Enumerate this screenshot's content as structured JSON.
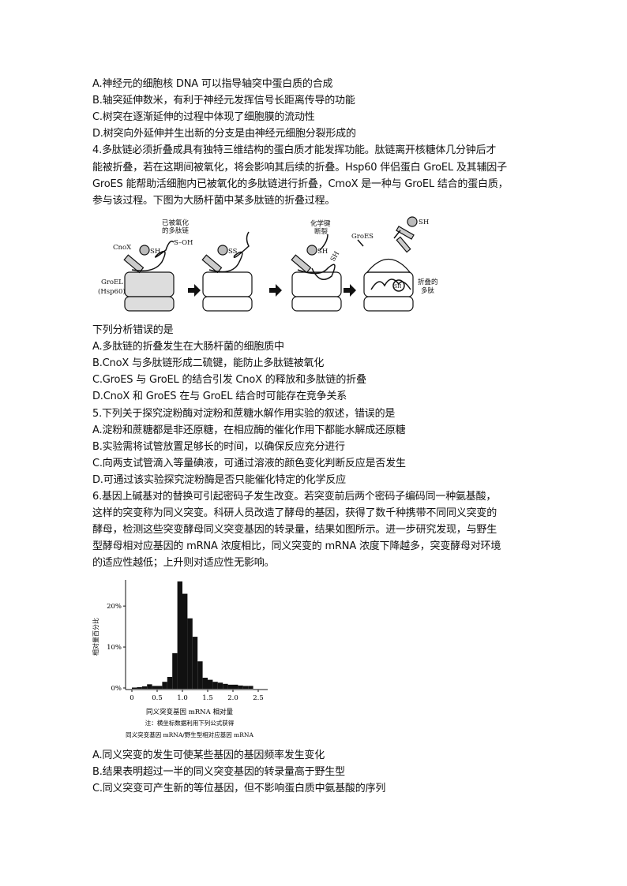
{
  "lines_top": [
    "A.神经元的细胞核 DNA 可以指导轴突中蛋白质的合成",
    "B.轴突延伸数米，有利于神经元发挥信号长距离传导的功能",
    "C.树突在逐渐延伸的过程中体现了细胞膜的流动性",
    "D.树突向外延伸并生出新的分支是由神经元细胞分裂形成的",
    "4.多肽链必须折叠成具有独特三维结构的蛋白质才能发挥功能。肽链离开核糖体几分钟后才",
    "能被折叠，若在这期间被氧化，将会影响其后续的折叠。Hsp60 伴侣蛋白 GroEL 及其辅因子",
    "GroES 能帮助活细胞内已被氧化的多肽链进行折叠，CmoX 是一种与 GroEL 结合的蛋白质，",
    "参与该过程。下图为大肠杆菌中某多肽链的折叠过程。"
  ],
  "diagram": {
    "oxidized_label_1": "已被氧化",
    "oxidized_label_2": "的多肽链",
    "cnox": "CnoX",
    "sh": "SH",
    "soh": "S–OH",
    "ss": "SS",
    "bond_label_1": "化学键",
    "bond_label_2": "断裂",
    "sh_rotated": "SH",
    "groes": "GroES",
    "groel_1": "GroEL",
    "groel_2": "(Hsp60)",
    "folded_1": "折叠的",
    "folded_2": "多肽",
    "sh_free": "SH",
    "sh_folded": "SH"
  },
  "lines_mid": [
    "下列分析错误的是",
    "A.多肽链的折叠发生在大肠杆菌的细胞质中",
    "B.CnoX 与多肽链形成二硫键，能防止多肽链被氧化",
    "C.GroES 与 GroEL 的结合引发 CnoX 的释放和多肽链的折叠",
    "D.CnoX 和 GroES 在与 GroEL 结合时可能存在竞争关系",
    "5.下列关于探究淀粉酶对淀粉和蔗糖水解作用实验的叙述，错误的是",
    "A.淀粉和蔗糖都是非还原糖，在相应酶的催化作用下都能水解成还原糖",
    "B.实验需将试管放置足够长的时间，以确保反应充分进行",
    "C.向两支试管滴入等量碘液，可通过溶液的颜色变化判断反应是否发生",
    "D.可通过该实验探究淀粉酶是否只能催化特定的化学反应",
    "6.基因上碱基对的替换可引起密码子发生改变。若突变前后两个密码子编码同一种氨基酸，",
    "这样的突变称为同义突变。科研人员改造了酵母的基因，获得了数千种携带不同同义突变的",
    "酵母，检测这些突变酵母同义突变基因的转录量，结果如图所示。进一步研究发现，与野生",
    "型酵母相对应基因的 mRNA 浓度相比，同义突变的 mRNA 浓度下降越多，突变酵母对环境",
    "的适应性越低；上升则对适应性无影响。"
  ],
  "chart_data": {
    "type": "bar",
    "xlabel": "同义突变基因 mRNA 相对量",
    "ylabel": "相对量百分比",
    "note_1": "注：横坐标数据利用下列公式获得",
    "note_2": "同义突变基因 mRNA/野生型相对应基因 mRNA",
    "xlim": [
      0,
      2.5
    ],
    "ylim": [
      0,
      26
    ],
    "x_ticks": [
      "0",
      "0.5",
      "1.0",
      "1.5",
      "2.0",
      "2.5"
    ],
    "y_ticks": [
      "0%",
      "10%",
      "20%"
    ],
    "bin_width": 0.1,
    "bin_starts": [
      0,
      0.1,
      0.2,
      0.3,
      0.4,
      0.5,
      0.6,
      0.7,
      0.8,
      0.9,
      1.0,
      1.1,
      1.2,
      1.3,
      1.4,
      1.5,
      1.6,
      1.7,
      1.8,
      1.9,
      2.0,
      2.1,
      2.2,
      2.3
    ],
    "values": [
      0.1,
      0.2,
      0.4,
      0.9,
      0.5,
      0.5,
      1.5,
      2.7,
      8.5,
      26,
      23,
      17,
      12.5,
      6.5,
      2.5,
      2,
      1.5,
      1.3,
      1,
      0.8,
      0.8,
      0.6,
      0.5,
      0.5
    ]
  },
  "lines_bottom": [
    "A.同义突变的发生可使某些基因的基因频率发生变化",
    "B.结果表明超过一半的同义突变基因的转录量高于野生型",
    "C.同义突变可产生新的等位基因，但不影响蛋白质中氨基酸的序列"
  ]
}
